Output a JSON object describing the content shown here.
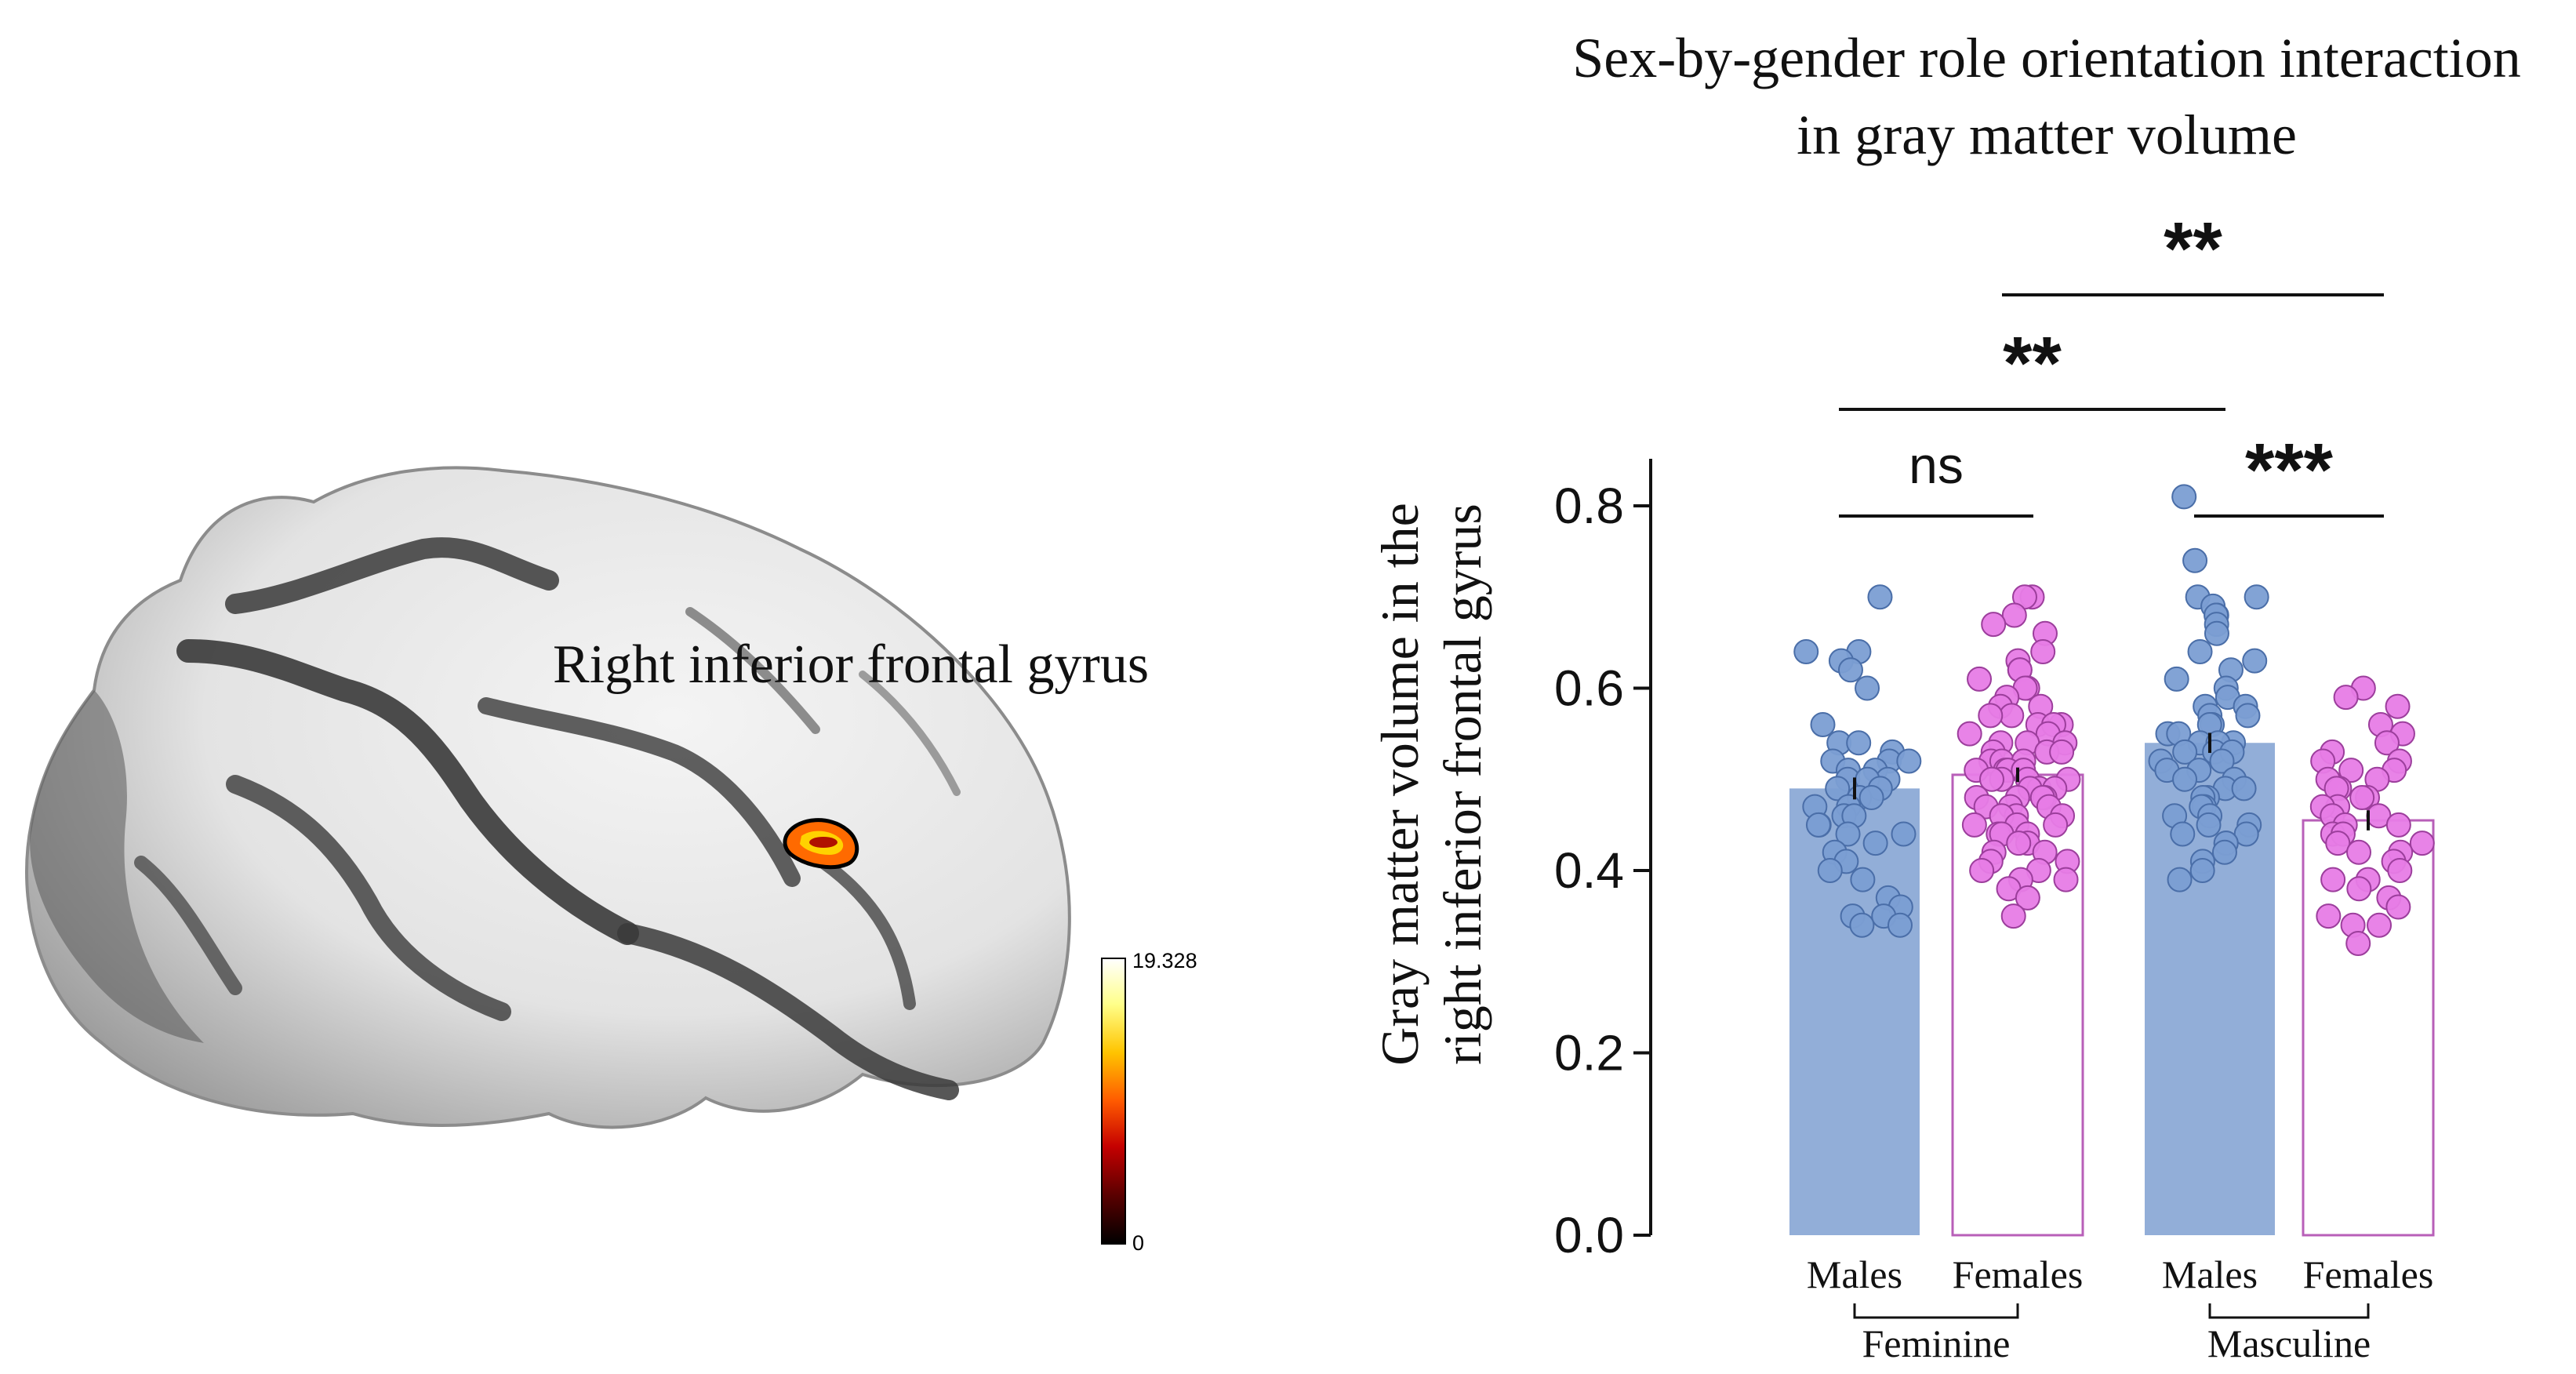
{
  "brain": {
    "region_label": "Right inferior frontal gyrus",
    "colorbar": {
      "max_label": "19.328",
      "min_label": "0",
      "colors": [
        "#000000",
        "#5a0000",
        "#c40000",
        "#ff5a00",
        "#ffc400",
        "#ffff8a",
        "#ffffff"
      ]
    },
    "cluster_colors": [
      "#ff6a00",
      "#ffd200",
      "#b01000"
    ]
  },
  "chart_data": {
    "type": "bar",
    "title_line1": "Sex-by-gender role orientation interaction",
    "title_line2": "in gray matter volume",
    "ylabel_line1": "Gray matter volume in the",
    "ylabel_line2": "right inferior frontal gyrus",
    "ylim": [
      0,
      0.85
    ],
    "yticks": [
      0.0,
      0.2,
      0.4,
      0.6,
      0.8
    ],
    "ytick_labels": [
      "0.0",
      "0.2",
      "0.4",
      "0.6",
      "0.8"
    ],
    "categories": [
      "Males",
      "Females",
      "Males",
      "Females"
    ],
    "groups": [
      "Feminine",
      "Masculine"
    ],
    "colors": {
      "males": "#92aed8",
      "males_point": "#7b9ed3",
      "females_point": "#e77ce6",
      "females_edge": "#b85fb8"
    },
    "series": [
      {
        "name": "Feminine Males",
        "mean": 0.49,
        "sem": 0.012,
        "fill": "male",
        "points": [
          0.7,
          0.64,
          0.64,
          0.63,
          0.62,
          0.6,
          0.56,
          0.54,
          0.54,
          0.53,
          0.52,
          0.52,
          0.52,
          0.51,
          0.51,
          0.5,
          0.5,
          0.5,
          0.49,
          0.49,
          0.48,
          0.48,
          0.47,
          0.47,
          0.46,
          0.46,
          0.45,
          0.45,
          0.44,
          0.44,
          0.43,
          0.42,
          0.41,
          0.4,
          0.39,
          0.37,
          0.36,
          0.35,
          0.35,
          0.34,
          0.34
        ]
      },
      {
        "name": "Feminine Females",
        "mean": 0.505,
        "sem": 0.008,
        "fill": "female",
        "points": [
          0.7,
          0.7,
          0.68,
          0.67,
          0.66,
          0.64,
          0.63,
          0.62,
          0.62,
          0.61,
          0.6,
          0.6,
          0.59,
          0.58,
          0.58,
          0.57,
          0.57,
          0.56,
          0.56,
          0.56,
          0.55,
          0.55,
          0.54,
          0.54,
          0.54,
          0.53,
          0.53,
          0.53,
          0.52,
          0.52,
          0.52,
          0.51,
          0.51,
          0.51,
          0.51,
          0.5,
          0.5,
          0.5,
          0.5,
          0.49,
          0.49,
          0.49,
          0.48,
          0.48,
          0.48,
          0.48,
          0.47,
          0.47,
          0.47,
          0.46,
          0.46,
          0.46,
          0.45,
          0.45,
          0.45,
          0.44,
          0.44,
          0.44,
          0.43,
          0.43,
          0.42,
          0.42,
          0.41,
          0.41,
          0.4,
          0.4,
          0.39,
          0.39,
          0.38,
          0.37,
          0.35
        ]
      },
      {
        "name": "Masculine Males",
        "mean": 0.54,
        "sem": 0.011,
        "fill": "male",
        "points": [
          0.81,
          0.74,
          0.7,
          0.7,
          0.69,
          0.68,
          0.68,
          0.67,
          0.66,
          0.64,
          0.63,
          0.62,
          0.61,
          0.6,
          0.59,
          0.58,
          0.58,
          0.57,
          0.57,
          0.56,
          0.56,
          0.55,
          0.55,
          0.54,
          0.54,
          0.54,
          0.53,
          0.53,
          0.53,
          0.52,
          0.52,
          0.51,
          0.51,
          0.5,
          0.5,
          0.49,
          0.49,
          0.48,
          0.48,
          0.47,
          0.47,
          0.46,
          0.46,
          0.45,
          0.45,
          0.44,
          0.44,
          0.43,
          0.43,
          0.42,
          0.41,
          0.4,
          0.39
        ]
      },
      {
        "name": "Masculine Females",
        "mean": 0.455,
        "sem": 0.011,
        "fill": "female",
        "points": [
          0.6,
          0.59,
          0.58,
          0.56,
          0.55,
          0.54,
          0.53,
          0.52,
          0.52,
          0.51,
          0.51,
          0.5,
          0.5,
          0.49,
          0.49,
          0.48,
          0.48,
          0.47,
          0.47,
          0.46,
          0.46,
          0.45,
          0.45,
          0.44,
          0.44,
          0.43,
          0.43,
          0.42,
          0.42,
          0.41,
          0.4,
          0.39,
          0.39,
          0.38,
          0.37,
          0.36,
          0.35,
          0.34,
          0.34,
          0.32
        ]
      }
    ],
    "significance": [
      {
        "from": 0,
        "to": 1,
        "label": "ns",
        "level": 0
      },
      {
        "from": 2,
        "to": 3,
        "label": "***",
        "level": 0
      },
      {
        "from": 0,
        "to": 2,
        "label": "**",
        "level": 1
      },
      {
        "from": 1,
        "to": 3,
        "label": "**",
        "level": 2
      }
    ]
  }
}
